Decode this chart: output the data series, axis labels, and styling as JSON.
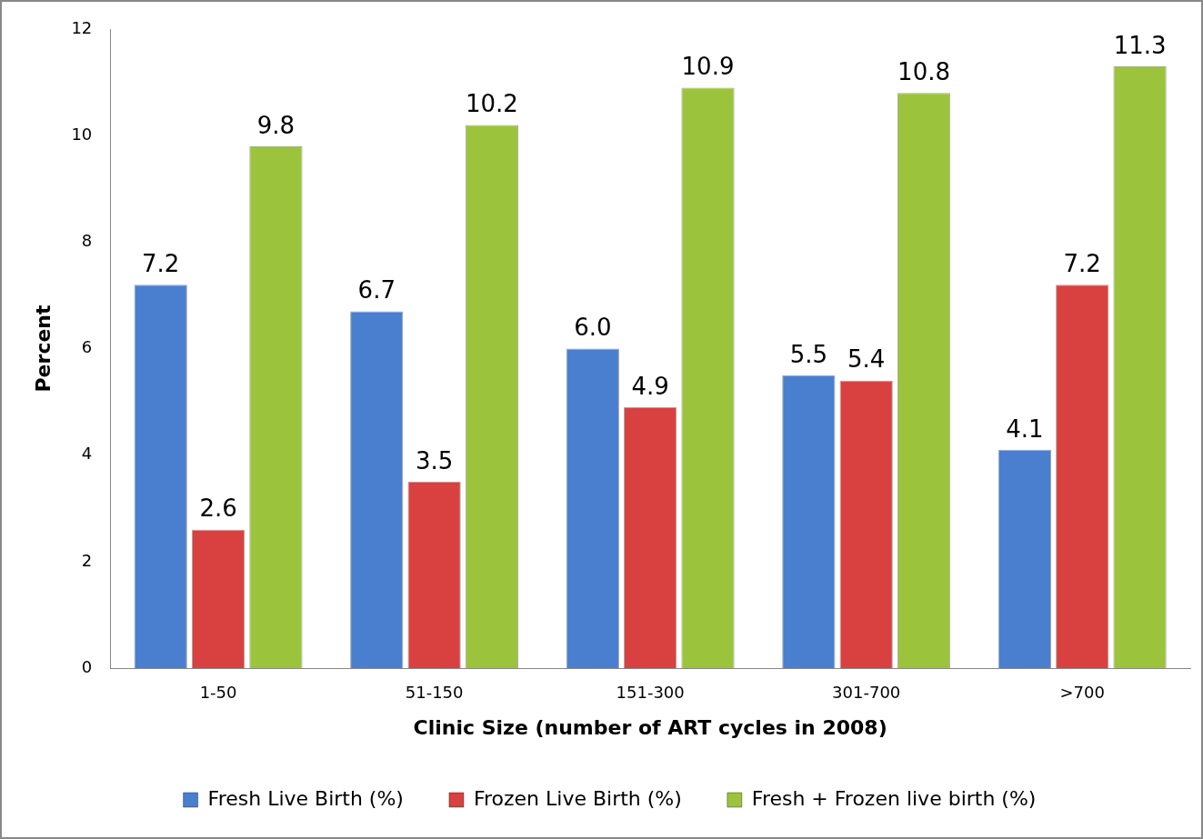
{
  "chart_data": {
    "type": "bar",
    "xlabel": "Clinic Size (number of ART cycles in 2008)",
    "ylabel": "Percent",
    "categories": [
      "1-50",
      "51-150",
      "151-300",
      "301-700",
      ">700"
    ],
    "series": [
      {
        "name": "Fresh Live Birth (%)",
        "color": "#4a7fd0",
        "values": [
          7.2,
          6.7,
          6.0,
          5.5,
          4.1
        ],
        "value_labels": [
          "7.2",
          "6.7",
          "6.0",
          "5.5",
          "4.1"
        ]
      },
      {
        "name": "Frozen Live Birth (%)",
        "color": "#d94040",
        "values": [
          2.6,
          3.5,
          4.9,
          5.4,
          7.2
        ],
        "value_labels": [
          "2.6",
          "3.5",
          "4.9",
          "5.4",
          "7.2"
        ]
      },
      {
        "name": "Fresh + Frozen live birth (%)",
        "color": "#9bc43c",
        "values": [
          9.8,
          10.2,
          10.9,
          10.8,
          11.3
        ],
        "value_labels": [
          "9.8",
          "10.2",
          "10.9",
          "10.8",
          "11.3"
        ]
      }
    ],
    "ylim": [
      0,
      12
    ],
    "yticks": [
      0,
      2,
      4,
      6,
      8,
      10,
      12
    ],
    "grid": false,
    "legend": "bottom"
  }
}
